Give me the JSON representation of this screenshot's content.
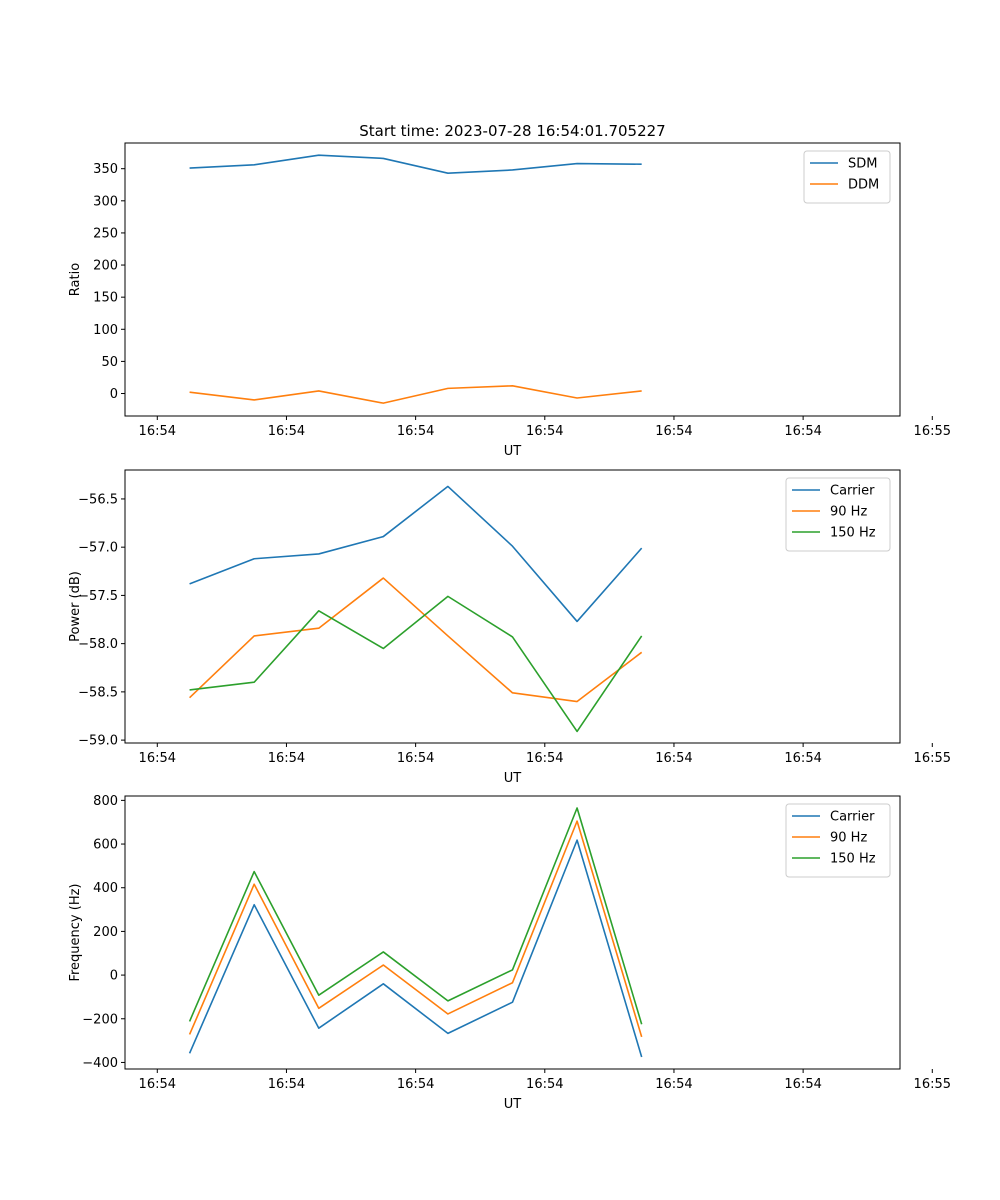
{
  "colors": {
    "blue": "#1f77b4",
    "orange": "#ff7f0e",
    "green": "#2ca02c"
  },
  "chart_data": [
    {
      "type": "line",
      "title": "Start time: 2023-07-28 16:54:01.705227",
      "xlabel": "UT",
      "ylabel": "Ratio",
      "x": [
        1,
        2,
        3,
        4,
        5,
        6,
        7,
        8
      ],
      "xlim": [
        0,
        12
      ],
      "xticks": [
        0.5,
        2.5,
        4.5,
        6.5,
        8.5,
        10.5,
        12.5
      ],
      "xticklabels": [
        "16:54",
        "16:54",
        "16:54",
        "16:54",
        "16:54",
        "16:54",
        "16:55"
      ],
      "ylim": [
        -35,
        390
      ],
      "yticks": [
        0,
        50,
        100,
        150,
        200,
        250,
        300,
        350
      ],
      "yticklabels": [
        "0",
        "50",
        "100",
        "150",
        "200",
        "250",
        "300",
        "350"
      ],
      "legend": "top-right",
      "series": [
        {
          "name": "SDM",
          "color": "blue",
          "values": [
            351,
            356,
            371,
            366,
            343,
            348,
            358,
            357
          ]
        },
        {
          "name": "DDM",
          "color": "orange",
          "values": [
            2,
            -10,
            4,
            -15,
            8,
            12,
            -7,
            4
          ]
        }
      ]
    },
    {
      "type": "line",
      "title": "",
      "xlabel": "UT",
      "ylabel": "Power (dB)",
      "x": [
        1,
        2,
        3,
        4,
        5,
        6,
        7,
        8
      ],
      "xlim": [
        0,
        12
      ],
      "xticks": [
        0.5,
        2.5,
        4.5,
        6.5,
        8.5,
        10.5,
        12.5
      ],
      "xticklabels": [
        "16:54",
        "16:54",
        "16:54",
        "16:54",
        "16:54",
        "16:54",
        "16:55"
      ],
      "ylim": [
        -59.03,
        -56.2
      ],
      "yticks": [
        -59.0,
        -58.5,
        -58.0,
        -57.5,
        -57.0,
        -56.5
      ],
      "yticklabels": [
        "−59.0",
        "−58.5",
        "−58.0",
        "−57.5",
        "−57.0",
        "−56.5"
      ],
      "legend": "top-right",
      "series": [
        {
          "name": "Carrier",
          "color": "blue",
          "values": [
            -57.38,
            -57.12,
            -57.07,
            -56.89,
            -56.37,
            -56.99,
            -57.77,
            -57.01
          ]
        },
        {
          "name": "90 Hz",
          "color": "orange",
          "values": [
            -58.56,
            -57.92,
            -57.84,
            -57.32,
            -57.92,
            -58.51,
            -58.6,
            -58.09
          ]
        },
        {
          "name": "150 Hz",
          "color": "green",
          "values": [
            -58.48,
            -58.4,
            -57.66,
            -58.05,
            -57.51,
            -57.93,
            -58.91,
            -57.92
          ]
        }
      ]
    },
    {
      "type": "line",
      "title": "",
      "xlabel": "UT",
      "ylabel": "Frequency (Hz)",
      "x": [
        1,
        2,
        3,
        4,
        5,
        6,
        7,
        8
      ],
      "xlim": [
        0,
        12
      ],
      "xticks": [
        0.5,
        2.5,
        4.5,
        6.5,
        8.5,
        10.5,
        12.5
      ],
      "xticklabels": [
        "16:54",
        "16:54",
        "16:54",
        "16:54",
        "16:54",
        "16:54",
        "16:55"
      ],
      "ylim": [
        -430,
        820
      ],
      "yticks": [
        -400,
        -200,
        0,
        200,
        400,
        600,
        800
      ],
      "yticklabels": [
        "−400",
        "−200",
        "0",
        "200",
        "400",
        "600",
        "800"
      ],
      "legend": "top-right",
      "series": [
        {
          "name": "Carrier",
          "color": "blue",
          "values": [
            -358,
            322,
            -243,
            -40,
            -267,
            -124,
            618,
            -375
          ]
        },
        {
          "name": "90 Hz",
          "color": "orange",
          "values": [
            -272,
            416,
            -152,
            46,
            -178,
            -35,
            705,
            -283
          ]
        },
        {
          "name": "150 Hz",
          "color": "green",
          "values": [
            -212,
            474,
            -92,
            106,
            -118,
            24,
            765,
            -225
          ]
        }
      ]
    }
  ]
}
